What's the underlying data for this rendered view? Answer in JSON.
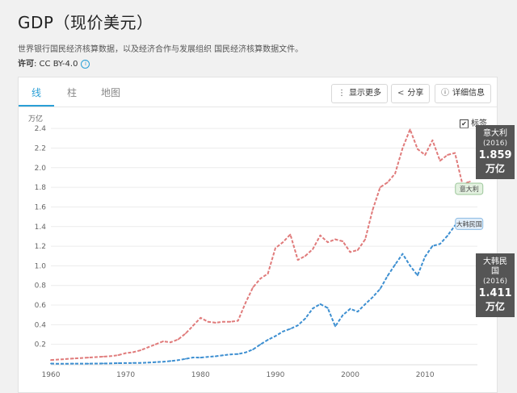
{
  "page": {
    "title": "GDP（现价美元）",
    "source_text": "世界银行国民经济核算数据，以及经济合作与发展组织 国民经济核算数据文件。",
    "license_label": "许可",
    "license_value": ": CC BY-4.0",
    "info_icon": "info-icon"
  },
  "tabs": [
    {
      "label": "线",
      "active": true
    },
    {
      "label": "柱",
      "active": false
    },
    {
      "label": "地图",
      "active": false
    }
  ],
  "toolbar": {
    "more_label": "显示更多",
    "share_label": "分享",
    "details_label": "详细信息",
    "more_icon": "vertical-dots-icon",
    "share_icon": "share-icon",
    "details_icon": "info-icon"
  },
  "legend_toggle": {
    "label": "标签",
    "checked": true
  },
  "colors": {
    "italy": "#e07b7b",
    "korea": "#3d8fd1",
    "accent": "#2a9fd6"
  },
  "tooltips": [
    {
      "name": "意大利",
      "year": "(2016)",
      "value": "1.859",
      "unit": "万亿"
    },
    {
      "name": "大韩民国",
      "year": "(2016)",
      "value": "1.411",
      "unit": "万亿"
    }
  ],
  "chart_data": {
    "type": "line",
    "ylabel": "万亿",
    "ylim": [
      0,
      2.5
    ],
    "xlim": [
      1960,
      2017
    ],
    "y_ticks": [
      "0.2",
      "0.4",
      "0.6",
      "0.8",
      "1.0",
      "1.2",
      "1.4",
      "1.6",
      "1.8",
      "2.0",
      "2.2",
      "2.4"
    ],
    "y_tick_values": [
      0.2,
      0.4,
      0.6,
      0.8,
      1.0,
      1.2,
      1.4,
      1.6,
      1.8,
      2.0,
      2.2,
      2.4
    ],
    "x_ticks": [
      "1960",
      "1970",
      "1980",
      "1990",
      "2000",
      "2010"
    ],
    "x_tick_values": [
      1960,
      1970,
      1980,
      1990,
      2000,
      2010
    ],
    "grid": true,
    "series": [
      {
        "name": "意大利",
        "end_label": "意大利",
        "color": "#e07b7b",
        "x": [
          1960,
          1961,
          1962,
          1963,
          1964,
          1965,
          1966,
          1967,
          1968,
          1969,
          1970,
          1971,
          1972,
          1973,
          1974,
          1975,
          1976,
          1977,
          1978,
          1979,
          1980,
          1981,
          1982,
          1983,
          1984,
          1985,
          1986,
          1987,
          1988,
          1989,
          1990,
          1991,
          1992,
          1993,
          1994,
          1995,
          1996,
          1997,
          1998,
          1999,
          2000,
          2001,
          2002,
          2003,
          2004,
          2005,
          2006,
          2007,
          2008,
          2009,
          2010,
          2011,
          2012,
          2013,
          2014,
          2015,
          2016
        ],
        "y": [
          0.04,
          0.045,
          0.05,
          0.055,
          0.06,
          0.065,
          0.07,
          0.075,
          0.08,
          0.09,
          0.11,
          0.12,
          0.14,
          0.17,
          0.2,
          0.23,
          0.22,
          0.25,
          0.31,
          0.39,
          0.47,
          0.43,
          0.42,
          0.43,
          0.43,
          0.44,
          0.62,
          0.78,
          0.87,
          0.92,
          1.18,
          1.24,
          1.32,
          1.06,
          1.1,
          1.17,
          1.31,
          1.24,
          1.27,
          1.25,
          1.14,
          1.16,
          1.27,
          1.57,
          1.8,
          1.85,
          1.94,
          2.2,
          2.39,
          2.19,
          2.13,
          2.28,
          2.07,
          2.13,
          2.15,
          1.83,
          1.859
        ]
      },
      {
        "name": "大韩民国",
        "end_label": "大韩民国",
        "color": "#3d8fd1",
        "x": [
          1960,
          1961,
          1962,
          1963,
          1964,
          1965,
          1966,
          1967,
          1968,
          1969,
          1970,
          1971,
          1972,
          1973,
          1974,
          1975,
          1976,
          1977,
          1978,
          1979,
          1980,
          1981,
          1982,
          1983,
          1984,
          1985,
          1986,
          1987,
          1988,
          1989,
          1990,
          1991,
          1992,
          1993,
          1994,
          1995,
          1996,
          1997,
          1998,
          1999,
          2000,
          2001,
          2002,
          2003,
          2004,
          2005,
          2006,
          2007,
          2008,
          2009,
          2010,
          2011,
          2012,
          2013,
          2014,
          2015,
          2016
        ],
        "y": [
          0.004,
          0.002,
          0.002,
          0.003,
          0.003,
          0.003,
          0.004,
          0.005,
          0.006,
          0.008,
          0.009,
          0.01,
          0.011,
          0.014,
          0.019,
          0.022,
          0.03,
          0.039,
          0.052,
          0.066,
          0.065,
          0.072,
          0.078,
          0.088,
          0.097,
          0.101,
          0.117,
          0.147,
          0.199,
          0.246,
          0.284,
          0.331,
          0.358,
          0.393,
          0.463,
          0.566,
          0.61,
          0.57,
          0.383,
          0.497,
          0.562,
          0.533,
          0.609,
          0.68,
          0.765,
          0.898,
          1.012,
          1.122,
          1.002,
          0.902,
          1.094,
          1.202,
          1.223,
          1.306,
          1.411,
          1.383,
          1.411
        ]
      }
    ]
  }
}
